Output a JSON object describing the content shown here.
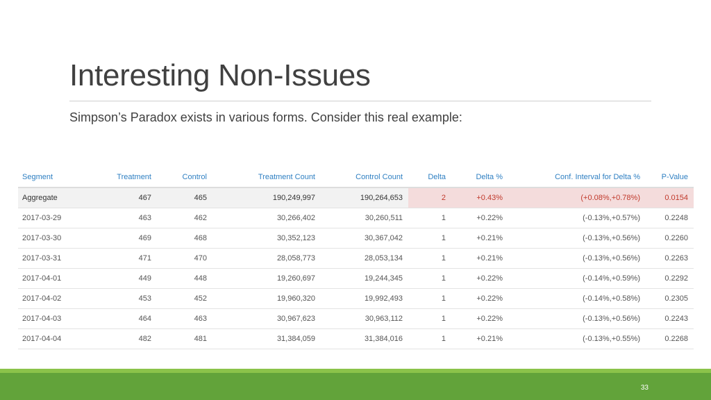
{
  "slide": {
    "title": "Interesting Non-Issues",
    "subtitle": "Simpson’s Paradox exists in various forms. Consider this real example:",
    "page_number": "33"
  },
  "table": {
    "headers": [
      "Segment",
      "Treatment",
      "Control",
      "Treatment Count",
      "Control Count",
      "Delta",
      "Delta %",
      "Conf. Interval for Delta %",
      "P-Value"
    ],
    "rows": [
      [
        "Aggregate",
        "467",
        "465",
        "190,249,997",
        "190,264,653",
        "2",
        "+0.43%",
        "(+0.08%,+0.78%)",
        "0.0154"
      ],
      [
        "2017-03-29",
        "463",
        "462",
        "30,266,402",
        "30,260,511",
        "1",
        "+0.22%",
        "(-0.13%,+0.57%)",
        "0.2248"
      ],
      [
        "2017-03-30",
        "469",
        "468",
        "30,352,123",
        "30,367,042",
        "1",
        "+0.21%",
        "(-0.13%,+0.56%)",
        "0.2260"
      ],
      [
        "2017-03-31",
        "471",
        "470",
        "28,058,773",
        "28,053,134",
        "1",
        "+0.21%",
        "(-0.13%,+0.56%)",
        "0.2263"
      ],
      [
        "2017-04-01",
        "449",
        "448",
        "19,260,697",
        "19,244,345",
        "1",
        "+0.22%",
        "(-0.14%,+0.59%)",
        "0.2292"
      ],
      [
        "2017-04-02",
        "453",
        "452",
        "19,960,320",
        "19,992,493",
        "1",
        "+0.22%",
        "(-0.14%,+0.58%)",
        "0.2305"
      ],
      [
        "2017-04-03",
        "464",
        "463",
        "30,967,623",
        "30,963,112",
        "1",
        "+0.22%",
        "(-0.13%,+0.56%)",
        "0.2243"
      ],
      [
        "2017-04-04",
        "482",
        "481",
        "31,384,059",
        "31,384,016",
        "1",
        "+0.21%",
        "(-0.13%,+0.55%)",
        "0.2268"
      ]
    ]
  },
  "colors": {
    "header_text": "#2e7fc2",
    "significant_text": "#c0392b",
    "significant_bg": "#f4dcdc",
    "footer_green": "#62a33a"
  }
}
